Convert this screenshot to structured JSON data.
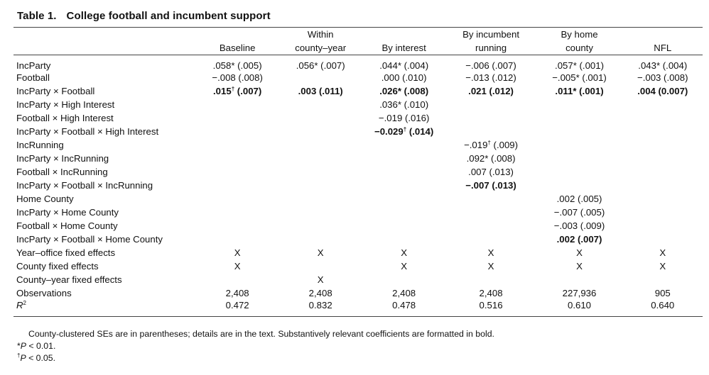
{
  "table": {
    "number": "Table 1.",
    "title": "College football and incumbent support",
    "columns": [
      {
        "line1": "",
        "line2": "Baseline"
      },
      {
        "line1": "Within",
        "line2": "county–year"
      },
      {
        "line1": "",
        "line2": "By interest"
      },
      {
        "line1": "By incumbent",
        "line2": "running"
      },
      {
        "line1": "By home",
        "line2": "county"
      },
      {
        "line1": "",
        "line2": "NFL"
      }
    ],
    "rows": [
      {
        "label": "IncParty",
        "cells": [
          ".058* (.005)",
          ".056* (.007)",
          ".044* (.004)",
          "−.006 (.007)",
          ".057* (.001)",
          ".043* (.004)"
        ],
        "bold": [
          false,
          false,
          false,
          false,
          false,
          false
        ]
      },
      {
        "label": "Football",
        "cells": [
          "−.008 (.008)",
          "",
          ".000 (.010)",
          "−.013 (.012)",
          "−.005* (.001)",
          "−.003 (.008)"
        ],
        "bold": [
          false,
          false,
          false,
          false,
          false,
          false
        ]
      },
      {
        "label": "IncParty × Football",
        "cells": [
          ".015† (.007)",
          ".003 (.011)",
          ".026* (.008)",
          ".021 (.012)",
          ".011* (.001)",
          ".004 (0.007)"
        ],
        "bold": [
          true,
          true,
          true,
          true,
          true,
          true
        ]
      },
      {
        "label": "IncParty × High Interest",
        "cells": [
          "",
          "",
          ".036* (.010)",
          "",
          "",
          ""
        ],
        "bold": [
          false,
          false,
          false,
          false,
          false,
          false
        ]
      },
      {
        "label": "Football × High Interest",
        "cells": [
          "",
          "",
          "−.019 (.016)",
          "",
          "",
          ""
        ],
        "bold": [
          false,
          false,
          false,
          false,
          false,
          false
        ]
      },
      {
        "label": "IncParty × Football × High Interest",
        "cells": [
          "",
          "",
          "−0.029† (.014)",
          "",
          "",
          ""
        ],
        "bold": [
          false,
          false,
          true,
          false,
          false,
          false
        ]
      },
      {
        "label": "IncRunning",
        "cells": [
          "",
          "",
          "",
          "−.019† (.009)",
          "",
          ""
        ],
        "bold": [
          false,
          false,
          false,
          false,
          false,
          false
        ]
      },
      {
        "label": "IncParty × IncRunning",
        "cells": [
          "",
          "",
          "",
          ".092* (.008)",
          "",
          ""
        ],
        "bold": [
          false,
          false,
          false,
          false,
          false,
          false
        ]
      },
      {
        "label": "Football × IncRunning",
        "cells": [
          "",
          "",
          "",
          ".007 (.013)",
          "",
          ""
        ],
        "bold": [
          false,
          false,
          false,
          false,
          false,
          false
        ]
      },
      {
        "label": "IncParty × Football × IncRunning",
        "cells": [
          "",
          "",
          "",
          "−.007 (.013)",
          "",
          ""
        ],
        "bold": [
          false,
          false,
          false,
          true,
          false,
          false
        ]
      },
      {
        "label": "Home County",
        "cells": [
          "",
          "",
          "",
          "",
          ".002 (.005)",
          ""
        ],
        "bold": [
          false,
          false,
          false,
          false,
          false,
          false
        ]
      },
      {
        "label": "IncParty × Home County",
        "cells": [
          "",
          "",
          "",
          "",
          "−.007 (.005)",
          ""
        ],
        "bold": [
          false,
          false,
          false,
          false,
          false,
          false
        ]
      },
      {
        "label": "Football × Home County",
        "cells": [
          "",
          "",
          "",
          "",
          "−.003 (.009)",
          ""
        ],
        "bold": [
          false,
          false,
          false,
          false,
          false,
          false
        ]
      },
      {
        "label": "IncParty × Football × Home County",
        "cells": [
          "",
          "",
          "",
          "",
          ".002 (.007)",
          ""
        ],
        "bold": [
          false,
          false,
          false,
          false,
          true,
          false
        ]
      },
      {
        "label": "Year–office fixed effects",
        "cells": [
          "X",
          "X",
          "X",
          "X",
          "X",
          "X"
        ],
        "bold": [
          false,
          false,
          false,
          false,
          false,
          false
        ]
      },
      {
        "label": "County fixed effects",
        "cells": [
          "X",
          "",
          "X",
          "X",
          "X",
          "X"
        ],
        "bold": [
          false,
          false,
          false,
          false,
          false,
          false
        ]
      },
      {
        "label": "County–year fixed effects",
        "cells": [
          "",
          "X",
          "",
          "",
          "",
          ""
        ],
        "bold": [
          false,
          false,
          false,
          false,
          false,
          false
        ]
      },
      {
        "label": "Observations",
        "cells": [
          "2,408",
          "2,408",
          "2,408",
          "2,408",
          "227,936",
          "905"
        ],
        "bold": [
          false,
          false,
          false,
          false,
          false,
          false
        ]
      },
      {
        "label": "R2",
        "cells": [
          "0.472",
          "0.832",
          "0.478",
          "0.516",
          "0.610",
          "0.640"
        ],
        "bold": [
          false,
          false,
          false,
          false,
          false,
          false
        ]
      }
    ],
    "notes": {
      "line1": "County-clustered SEs are in parentheses; details are in the text. Substantively relevant coefficients are formatted in bold.",
      "line2": "*P < 0.01.",
      "line3": "†P < 0.05."
    }
  }
}
